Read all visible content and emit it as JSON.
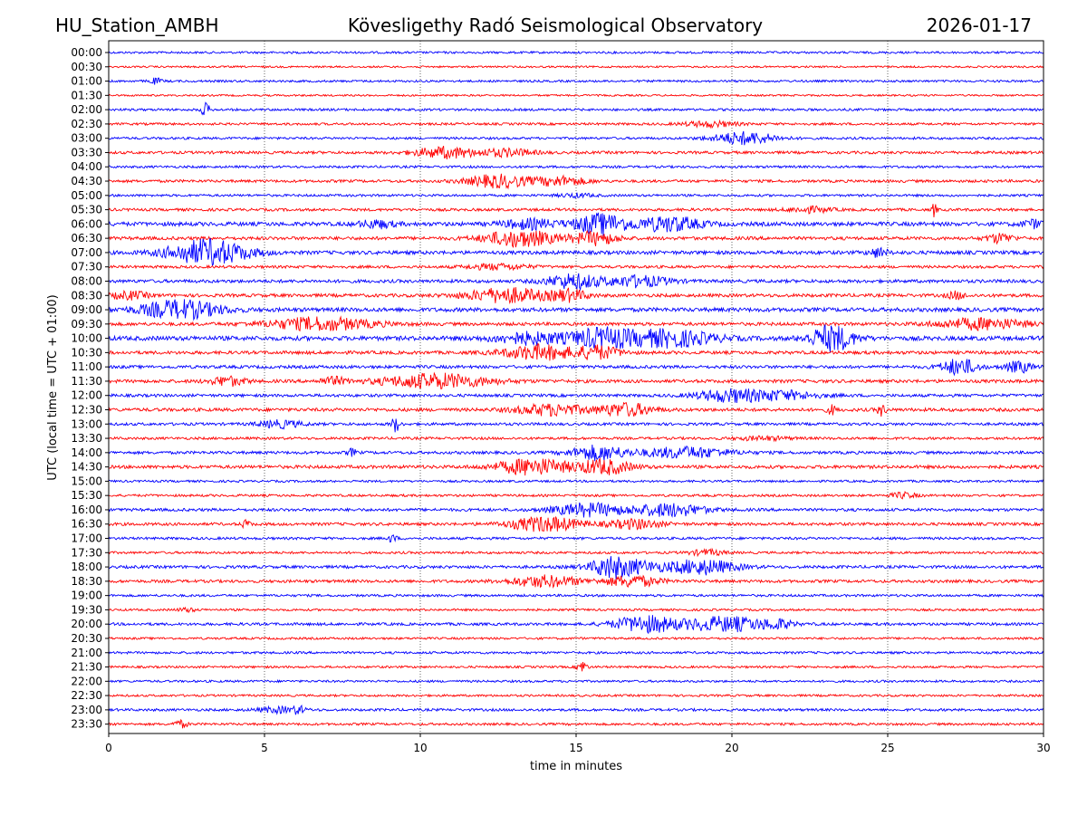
{
  "header": {
    "station": "HU_Station_AMBH",
    "observatory": "Kövesligethy Radó Seismological Observatory",
    "date": "2026-01-17"
  },
  "chart_data": {
    "type": "line",
    "title": "Kövesligethy Radó Seismological Observatory",
    "xlabel": "time in minutes",
    "ylabel": "UTC (local time = UTC + 01:00)",
    "xlim": [
      0,
      30
    ],
    "xticks": [
      "0",
      "5",
      "10",
      "15",
      "20",
      "25",
      "30"
    ],
    "grid": "vertical dotted lines at x ticks",
    "colors": {
      "even_trace": "#0000ff",
      "odd_trace": "#ff0000",
      "grid": "#000000"
    },
    "row_labels": [
      "00:00",
      "00:30",
      "01:00",
      "01:30",
      "02:00",
      "02:30",
      "03:00",
      "03:30",
      "04:00",
      "04:30",
      "05:00",
      "05:30",
      "06:00",
      "06:30",
      "07:00",
      "07:30",
      "08:00",
      "08:30",
      "09:00",
      "09:30",
      "10:00",
      "10:30",
      "11:00",
      "11:30",
      "12:00",
      "12:30",
      "13:00",
      "13:30",
      "14:00",
      "14:30",
      "15:00",
      "15:30",
      "16:00",
      "16:30",
      "17:00",
      "17:30",
      "18:00",
      "18:30",
      "19:00",
      "19:30",
      "20:00",
      "20:30",
      "21:00",
      "21:30",
      "22:00",
      "22:30",
      "23:00",
      "23:30"
    ],
    "rows": [
      {
        "label": "00:00",
        "noise": 1.2,
        "bursts": []
      },
      {
        "label": "00:30",
        "noise": 1.0,
        "bursts": []
      },
      {
        "label": "01:00",
        "noise": 1.2,
        "bursts": [
          [
            1.5,
            0.15,
            3
          ]
        ]
      },
      {
        "label": "01:30",
        "noise": 1.0,
        "bursts": []
      },
      {
        "label": "02:00",
        "noise": 1.3,
        "bursts": [
          [
            3.1,
            0.1,
            7
          ]
        ]
      },
      {
        "label": "02:30",
        "noise": 1.3,
        "bursts": [
          [
            19.3,
            0.6,
            3
          ]
        ]
      },
      {
        "label": "03:00",
        "noise": 1.3,
        "bursts": [
          [
            20.4,
            0.7,
            7
          ]
        ]
      },
      {
        "label": "03:30",
        "noise": 1.5,
        "bursts": [
          [
            10.8,
            0.7,
            6
          ],
          [
            12.8,
            0.6,
            4
          ]
        ]
      },
      {
        "label": "04:00",
        "noise": 1.3,
        "bursts": []
      },
      {
        "label": "04:30",
        "noise": 1.5,
        "bursts": [
          [
            12.5,
            0.7,
            7
          ],
          [
            14.5,
            0.6,
            5
          ]
        ]
      },
      {
        "label": "05:00",
        "noise": 1.3,
        "bursts": [
          [
            15,
            0.4,
            2
          ]
        ]
      },
      {
        "label": "05:30",
        "noise": 1.5,
        "bursts": [
          [
            22.5,
            0.5,
            3
          ],
          [
            26.5,
            0.05,
            8
          ]
        ]
      },
      {
        "label": "06:00",
        "noise": 2.2,
        "bursts": [
          [
            8.6,
            0.4,
            4
          ],
          [
            13.5,
            0.6,
            5
          ],
          [
            15.8,
            0.6,
            11
          ],
          [
            18.0,
            0.7,
            8
          ],
          [
            29.7,
            0.3,
            4
          ]
        ]
      },
      {
        "label": "06:30",
        "noise": 1.8,
        "bursts": [
          [
            13.2,
            0.8,
            9
          ],
          [
            15.6,
            0.5,
            7
          ],
          [
            28.6,
            0.3,
            5
          ]
        ]
      },
      {
        "label": "07:00",
        "noise": 2.0,
        "bursts": [
          [
            3.2,
            0.9,
            14
          ],
          [
            24.7,
            0.2,
            5
          ]
        ]
      },
      {
        "label": "07:30",
        "noise": 1.5,
        "bursts": [
          [
            12.5,
            0.7,
            3
          ]
        ]
      },
      {
        "label": "08:00",
        "noise": 1.8,
        "bursts": [
          [
            14.9,
            0.6,
            8
          ],
          [
            17.0,
            0.7,
            6
          ]
        ]
      },
      {
        "label": "08:30",
        "noise": 1.8,
        "bursts": [
          [
            0.7,
            0.4,
            4
          ],
          [
            12.8,
            0.9,
            8
          ],
          [
            14.8,
            0.4,
            6
          ],
          [
            27.2,
            0.2,
            4
          ]
        ]
      },
      {
        "label": "09:00",
        "noise": 2.2,
        "bursts": [
          [
            2.3,
            0.9,
            10
          ]
        ]
      },
      {
        "label": "09:30",
        "noise": 1.8,
        "bursts": [
          [
            6.8,
            1.2,
            7
          ],
          [
            28.0,
            1.0,
            6
          ]
        ]
      },
      {
        "label": "10:00",
        "noise": 2.4,
        "bursts": [
          [
            13.5,
            0.8,
            6
          ],
          [
            15.8,
            0.7,
            10
          ],
          [
            18.0,
            1.0,
            9
          ],
          [
            23.2,
            0.5,
            14
          ]
        ]
      },
      {
        "label": "10:30",
        "noise": 1.8,
        "bursts": [
          [
            13.8,
            0.8,
            8
          ],
          [
            15.7,
            0.5,
            7
          ]
        ]
      },
      {
        "label": "11:00",
        "noise": 1.7,
        "bursts": [
          [
            27.3,
            0.4,
            9
          ],
          [
            29.2,
            0.3,
            6
          ]
        ]
      },
      {
        "label": "11:30",
        "noise": 1.8,
        "bursts": [
          [
            10.5,
            1.2,
            8
          ],
          [
            3.8,
            0.4,
            5
          ],
          [
            7.2,
            0.3,
            4
          ]
        ]
      },
      {
        "label": "12:00",
        "noise": 1.6,
        "bursts": [
          [
            19.8,
            0.7,
            6
          ],
          [
            21.5,
            0.9,
            5
          ]
        ]
      },
      {
        "label": "12:30",
        "noise": 1.8,
        "bursts": [
          [
            14.2,
            0.8,
            6
          ],
          [
            16.6,
            0.6,
            7
          ],
          [
            24.8,
            0.1,
            6
          ],
          [
            23.2,
            0.1,
            5
          ]
        ]
      },
      {
        "label": "13:00",
        "noise": 1.5,
        "bursts": [
          [
            5.5,
            0.5,
            4
          ],
          [
            9.2,
            0.1,
            8
          ]
        ]
      },
      {
        "label": "13:30",
        "noise": 1.4,
        "bursts": [
          [
            21,
            0.6,
            2
          ]
        ]
      },
      {
        "label": "14:00",
        "noise": 1.6,
        "bursts": [
          [
            7.8,
            0.1,
            4
          ],
          [
            15.7,
            0.6,
            8
          ],
          [
            18.5,
            1.0,
            6
          ]
        ]
      },
      {
        "label": "14:30",
        "noise": 1.8,
        "bursts": [
          [
            13.6,
            0.8,
            9
          ],
          [
            15.9,
            0.6,
            8
          ]
        ]
      },
      {
        "label": "15:00",
        "noise": 1.2,
        "bursts": []
      },
      {
        "label": "15:30",
        "noise": 1.3,
        "bursts": [
          [
            25.5,
            0.3,
            3
          ]
        ]
      },
      {
        "label": "16:00",
        "noise": 1.6,
        "bursts": [
          [
            15.4,
            0.8,
            7
          ],
          [
            18.0,
            0.8,
            7
          ]
        ]
      },
      {
        "label": "16:30",
        "noise": 1.6,
        "bursts": [
          [
            4.4,
            0.1,
            4
          ],
          [
            14.0,
            0.8,
            8
          ],
          [
            16.9,
            0.6,
            5
          ]
        ]
      },
      {
        "label": "17:00",
        "noise": 1.4,
        "bursts": [
          [
            9.1,
            0.1,
            4
          ]
        ]
      },
      {
        "label": "17:30",
        "noise": 1.3,
        "bursts": [
          [
            19.2,
            0.4,
            3
          ]
        ]
      },
      {
        "label": "18:00",
        "noise": 1.6,
        "bursts": [
          [
            16.5,
            0.7,
            9
          ],
          [
            19.0,
            0.8,
            8
          ],
          [
            16.0,
            0.3,
            5
          ]
        ]
      },
      {
        "label": "18:30",
        "noise": 1.6,
        "bursts": [
          [
            14.0,
            0.8,
            6
          ],
          [
            16.8,
            0.6,
            6
          ]
        ]
      },
      {
        "label": "19:00",
        "noise": 1.3,
        "bursts": []
      },
      {
        "label": "19:30",
        "noise": 1.2,
        "bursts": [
          [
            2.5,
            0.2,
            2
          ]
        ]
      },
      {
        "label": "20:00",
        "noise": 1.5,
        "bursts": [
          [
            17.2,
            0.7,
            9
          ],
          [
            19.8,
            1.0,
            8
          ],
          [
            21.5,
            0.3,
            4
          ]
        ]
      },
      {
        "label": "20:30",
        "noise": 1.2,
        "bursts": []
      },
      {
        "label": "21:00",
        "noise": 1.3,
        "bursts": []
      },
      {
        "label": "21:30",
        "noise": 1.2,
        "bursts": [
          [
            15.2,
            0.1,
            7
          ]
        ]
      },
      {
        "label": "22:00",
        "noise": 1.2,
        "bursts": []
      },
      {
        "label": "22:30",
        "noise": 1.2,
        "bursts": []
      },
      {
        "label": "23:00",
        "noise": 1.4,
        "bursts": [
          [
            5.5,
            0.5,
            3
          ],
          [
            6.1,
            0.1,
            4
          ]
        ]
      },
      {
        "label": "23:30",
        "noise": 1.3,
        "bursts": [
          [
            2.3,
            0.15,
            4
          ]
        ]
      }
    ]
  }
}
